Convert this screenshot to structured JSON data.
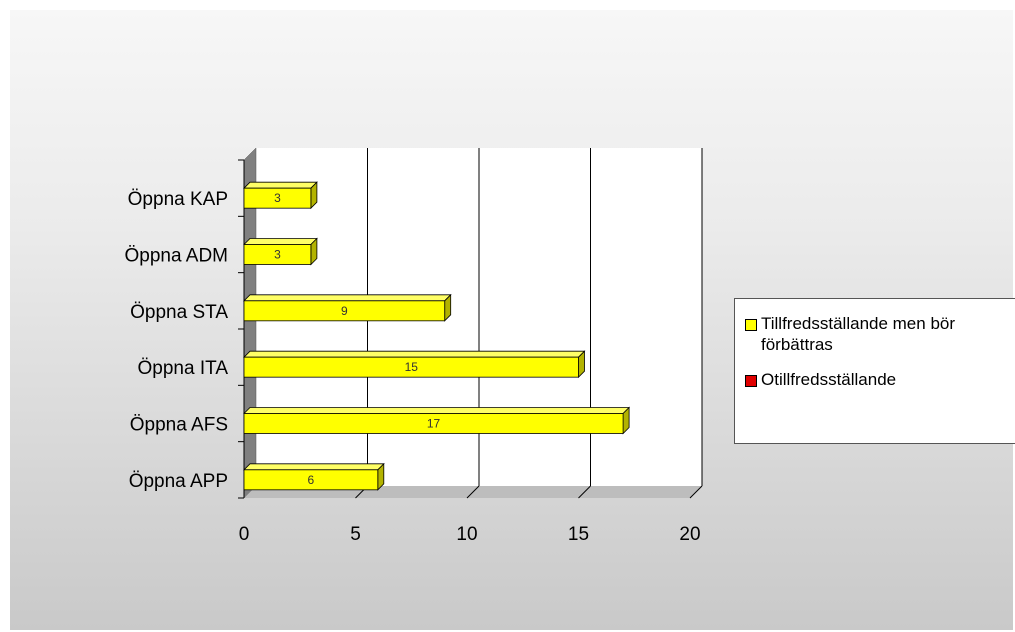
{
  "chart_data": {
    "type": "bar",
    "orientation": "horizontal",
    "categories": [
      "Öppna KAP",
      "Öppna ADM",
      "Öppna STA",
      "Öppna ITA",
      "Öppna AFS",
      "Öppna APP"
    ],
    "series": [
      {
        "name": "Tillfredsställande men bör förbättras",
        "values": [
          3,
          3,
          9,
          15,
          17,
          6
        ],
        "color": "#ffff00"
      },
      {
        "name": "Otillfredsställande",
        "values": [
          0,
          0,
          0,
          0,
          0,
          0
        ],
        "color": "#e00000"
      }
    ],
    "x_ticks": [
      "0",
      "5",
      "10",
      "15",
      "20"
    ],
    "xlim": [
      0,
      20
    ],
    "grid": "vertical",
    "legend_position": "right"
  }
}
